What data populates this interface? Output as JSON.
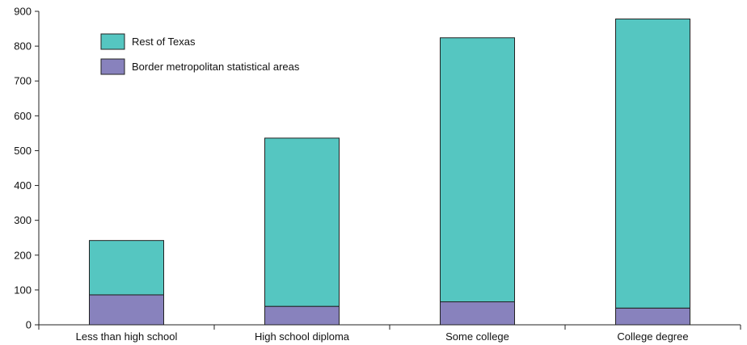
{
  "chart_data": {
    "type": "bar",
    "stacked": true,
    "categories": [
      "Less than high school",
      "High school diploma",
      "Some college",
      "College degree"
    ],
    "series": [
      {
        "name": "Border metropolitan statistical areas",
        "values": [
          86,
          53,
          66,
          48
        ],
        "color": "#8882bd"
      },
      {
        "name": "Rest of Texas",
        "values": [
          156,
          483,
          758,
          830
        ],
        "color": "#55c6c1"
      }
    ],
    "title": "",
    "xlabel": "",
    "ylabel": "",
    "ylim": [
      0,
      900
    ],
    "yticks": [
      0,
      100,
      200,
      300,
      400,
      500,
      600,
      700,
      800,
      900
    ],
    "grid": false,
    "legend_position": "top-left"
  }
}
